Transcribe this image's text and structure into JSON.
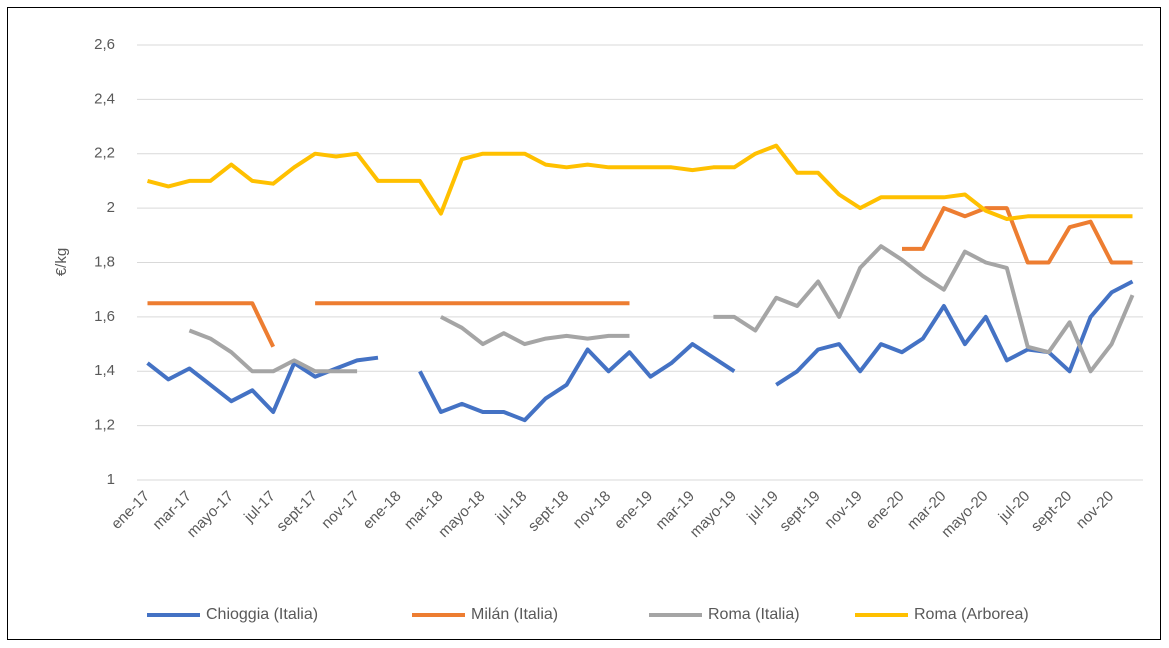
{
  "chart_data": {
    "type": "line",
    "ylabel": "€/kg",
    "categories": [
      "ene-17",
      null,
      "mar-17",
      null,
      "mayo-17",
      null,
      "jul-17",
      null,
      "sept-17",
      null,
      "nov-17",
      null,
      "ene-18",
      null,
      "mar-18",
      null,
      "mayo-18",
      null,
      "jul-18",
      null,
      "sept-18",
      null,
      "nov-18",
      null,
      "ene-19",
      null,
      "mar-19",
      null,
      "mayo-19",
      null,
      "jul-19",
      null,
      "sept-19",
      null,
      "nov-19",
      null,
      "ene-20",
      null,
      "mar-20",
      null,
      "mayo-20",
      null,
      "jul-20",
      null,
      "sept-20",
      null,
      "nov-20",
      null
    ],
    "series": [
      {
        "name": "Chioggia (Italia)",
        "color": "#4472c4",
        "values": [
          1.43,
          1.37,
          1.41,
          1.35,
          1.29,
          1.33,
          1.25,
          1.43,
          1.38,
          1.41,
          1.44,
          1.45,
          null,
          1.4,
          1.25,
          1.28,
          1.25,
          1.25,
          1.22,
          1.3,
          1.35,
          1.48,
          1.4,
          1.47,
          1.38,
          1.43,
          1.5,
          1.45,
          1.4,
          null,
          1.35,
          1.4,
          1.48,
          1.5,
          1.4,
          1.5,
          1.47,
          1.52,
          1.64,
          1.5,
          1.6,
          1.44,
          1.48,
          1.47,
          1.4,
          1.6,
          1.69,
          1.73
        ]
      },
      {
        "name": "Milán (Italia)",
        "color": "#ed7d31",
        "values": [
          1.65,
          1.65,
          1.65,
          1.65,
          1.65,
          1.65,
          1.49,
          null,
          1.65,
          1.65,
          1.65,
          1.65,
          1.65,
          1.65,
          1.65,
          1.65,
          1.65,
          1.65,
          1.65,
          1.65,
          1.65,
          1.65,
          1.65,
          1.65,
          null,
          null,
          null,
          null,
          null,
          null,
          null,
          null,
          null,
          null,
          null,
          null,
          1.85,
          1.85,
          2.0,
          1.97,
          2.0,
          2.0,
          1.8,
          1.8,
          1.93,
          1.95,
          1.8,
          1.8
        ]
      },
      {
        "name": "Roma (Italia)",
        "color": "#a5a5a5",
        "values": [
          null,
          null,
          1.55,
          1.52,
          1.47,
          1.4,
          1.4,
          1.44,
          1.4,
          1.4,
          1.4,
          null,
          null,
          null,
          1.6,
          1.56,
          1.5,
          1.54,
          1.5,
          1.52,
          1.53,
          1.52,
          1.53,
          1.53,
          null,
          null,
          null,
          1.6,
          1.6,
          1.55,
          1.67,
          1.64,
          1.73,
          1.6,
          1.78,
          1.86,
          1.81,
          1.75,
          1.7,
          1.84,
          1.8,
          1.78,
          1.49,
          1.47,
          1.58,
          1.4,
          1.5,
          1.68
        ]
      },
      {
        "name": "Roma (Arborea)",
        "color": "#ffc000",
        "values": [
          2.1,
          2.08,
          2.1,
          2.1,
          2.16,
          2.1,
          2.09,
          2.15,
          2.2,
          2.19,
          2.2,
          2.1,
          2.1,
          2.1,
          1.98,
          2.18,
          2.2,
          2.2,
          2.2,
          2.16,
          2.15,
          2.16,
          2.15,
          2.15,
          2.15,
          2.15,
          2.14,
          2.15,
          2.15,
          2.2,
          2.23,
          2.13,
          2.13,
          2.05,
          2.0,
          2.04,
          2.04,
          2.04,
          2.04,
          2.05,
          1.99,
          1.96,
          1.97,
          1.97,
          1.97,
          1.97,
          1.97,
          1.97
        ]
      }
    ],
    "ylim": [
      1,
      2.6
    ],
    "yticks": [
      1,
      {
        "value": 1.2,
        "label": "1,2"
      },
      {
        "value": 1.4,
        "label": "1,4"
      },
      {
        "value": 1.6,
        "label": "1,6"
      },
      {
        "value": 1.8,
        "label": "1,8"
      },
      2,
      {
        "value": 2.2,
        "label": "2,2"
      },
      {
        "value": 2.4,
        "label": "2,4"
      },
      {
        "value": 2.6,
        "label": "2,6"
      }
    ],
    "grid": true,
    "legend": "bottom"
  }
}
